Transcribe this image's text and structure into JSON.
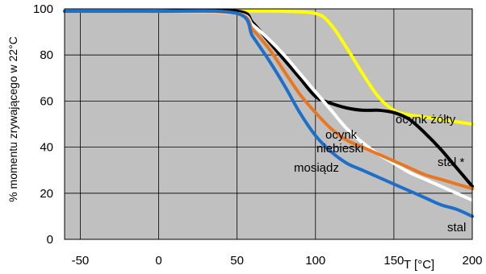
{
  "chart_data": {
    "type": "line",
    "ylabel": "% momentu zrywającego w 22°C",
    "xlabel": "T [°C]",
    "xlim": [
      -60,
      200
    ],
    "ylim": [
      0,
      100
    ],
    "x_ticks": [
      -50,
      0,
      50,
      100,
      150,
      200
    ],
    "y_ticks": [
      0,
      20,
      40,
      60,
      80,
      100
    ],
    "grid": true,
    "background": "#c0c0c0",
    "series": [
      {
        "name": "ocynk żółty",
        "color": "#ffff00",
        "x": [
          -60,
          -30,
          0,
          50,
          75,
          100,
          110,
          120,
          130,
          140,
          150,
          160,
          170,
          180,
          190,
          200
        ],
        "values": [
          99,
          99,
          99,
          99,
          99,
          98,
          93,
          83,
          72,
          62,
          56,
          54,
          53,
          52,
          51,
          50
        ]
      },
      {
        "name": "stal *",
        "color": "#000000",
        "x": [
          -60,
          -30,
          0,
          50,
          60,
          70,
          80,
          90,
          100,
          110,
          120,
          130,
          140,
          150,
          160,
          170,
          180,
          190,
          200
        ],
        "values": [
          99,
          99,
          99,
          99,
          94,
          86,
          78,
          70,
          62,
          59,
          57,
          56,
          56,
          55,
          52,
          46,
          39,
          31,
          23
        ]
      },
      {
        "name": "ocynk niebieski",
        "color": "#ffffff",
        "x": [
          -60,
          -30,
          0,
          50,
          60,
          70,
          80,
          90,
          100,
          110,
          120,
          130,
          140,
          150,
          160,
          170,
          180,
          190,
          200
        ],
        "values": [
          99,
          99,
          99,
          98,
          93,
          87,
          80,
          72,
          64,
          56,
          48,
          42,
          37,
          33,
          29,
          26,
          23,
          20,
          17
        ]
      },
      {
        "name": "mosiądz",
        "color": "#e87722",
        "x": [
          -60,
          -30,
          0,
          50,
          60,
          70,
          80,
          90,
          100,
          110,
          120,
          130,
          140,
          150,
          160,
          170,
          180,
          190,
          200
        ],
        "values": [
          99,
          99,
          99,
          98,
          91,
          83,
          73,
          63,
          55,
          48,
          43,
          40,
          37,
          34,
          31,
          28,
          26,
          24,
          22
        ]
      },
      {
        "name": "stal",
        "color": "#1e6fc8",
        "x": [
          -60,
          -30,
          0,
          50,
          60,
          70,
          80,
          90,
          100,
          110,
          120,
          130,
          140,
          150,
          160,
          170,
          180,
          190,
          200
        ],
        "values": [
          99,
          99,
          99,
          98,
          88,
          78,
          67,
          55,
          45,
          38,
          33,
          30,
          27,
          24,
          21,
          18,
          15,
          13,
          10
        ]
      }
    ],
    "annotations": {
      "ocynk_zolty": "ocynk żółty",
      "ocynk": "ocynk",
      "niebieski": "niebieski",
      "stal_star": "stal *",
      "mosiadz": "mosiądz",
      "stal": "stal"
    }
  }
}
